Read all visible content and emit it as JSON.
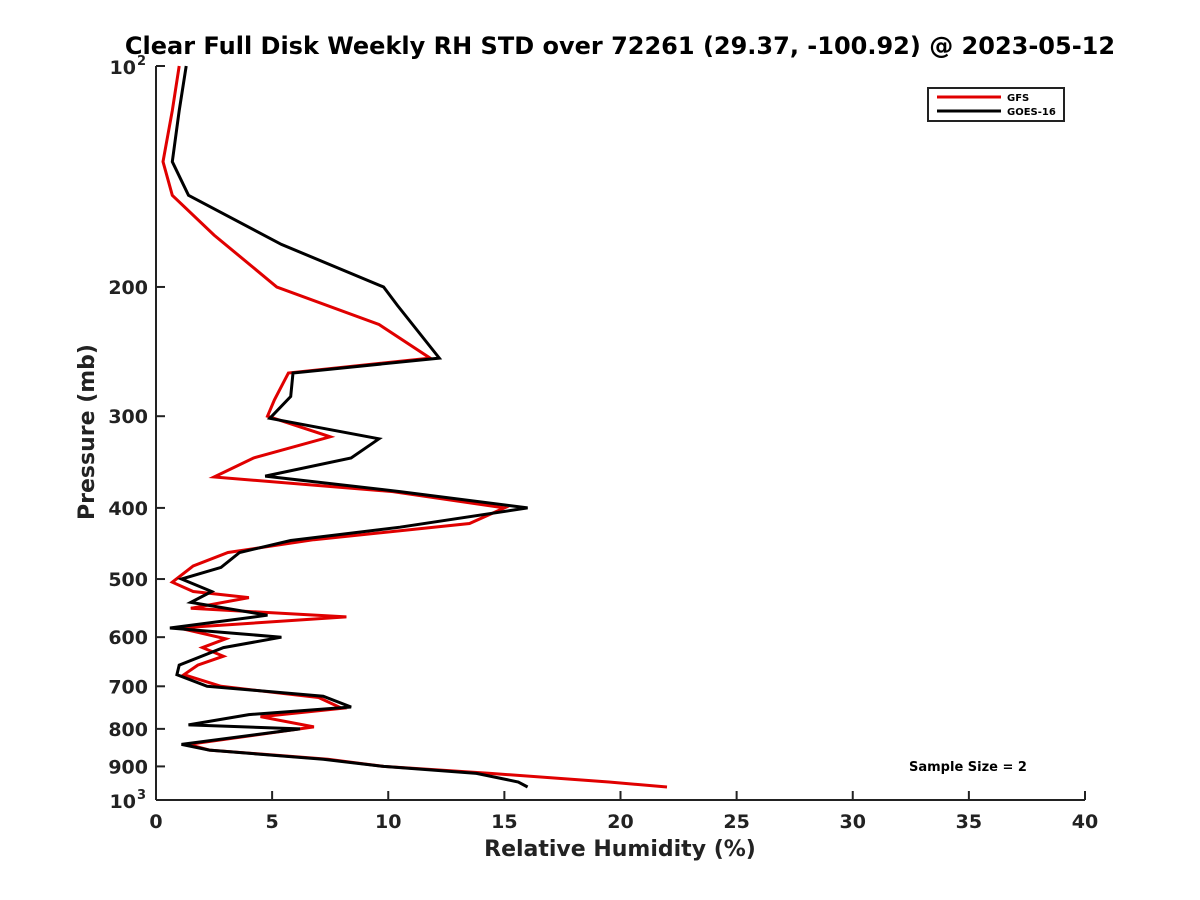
{
  "chart_data": {
    "type": "line",
    "title": "Clear Full Disk Weekly RH STD over 72261 (29.37, -100.92) @ 2023-05-12",
    "xlabel": "Relative Humidity (%)",
    "ylabel": "Pressure (mb)",
    "xlim": [
      0,
      40
    ],
    "ylim": [
      100,
      1000
    ],
    "y_scale": "log",
    "y_reversed": true,
    "x_ticks": [
      0,
      5,
      10,
      15,
      20,
      25,
      30,
      35,
      40
    ],
    "x_tick_labels": [
      "0",
      "5",
      "10",
      "15",
      "20",
      "25",
      "30",
      "35",
      "40"
    ],
    "y_ticks": [
      200,
      300,
      400,
      500,
      600,
      700,
      800,
      900
    ],
    "y_tick_labels": [
      "200",
      "300",
      "400",
      "500",
      "600",
      "700",
      "800",
      "900"
    ],
    "y_end_labels": {
      "top_base": "10",
      "top_exp": "2",
      "bottom_base": "10",
      "bottom_exp": "3"
    },
    "legend_position": "top-right",
    "annotation": "Sample Size = 2",
    "series": [
      {
        "name": "GFS",
        "color": "#e00000",
        "points": [
          [
            1.0,
            100
          ],
          [
            0.7,
            115
          ],
          [
            0.3,
            135
          ],
          [
            0.7,
            150
          ],
          [
            2.5,
            170
          ],
          [
            5.2,
            200
          ],
          [
            9.6,
            225
          ],
          [
            11.8,
            250
          ],
          [
            5.7,
            262
          ],
          [
            5.1,
            285
          ],
          [
            4.8,
            300
          ],
          [
            7.5,
            320
          ],
          [
            4.2,
            342
          ],
          [
            2.5,
            363
          ],
          [
            10.2,
            380
          ],
          [
            15.0,
            400
          ],
          [
            13.5,
            420
          ],
          [
            6.8,
            442
          ],
          [
            3.1,
            460
          ],
          [
            1.6,
            480
          ],
          [
            0.7,
            505
          ],
          [
            1.6,
            520
          ],
          [
            4.0,
            530
          ],
          [
            1.5,
            548
          ],
          [
            8.2,
            563
          ],
          [
            1.0,
            583
          ],
          [
            3.0,
            603
          ],
          [
            2.0,
            620
          ],
          [
            2.9,
            637
          ],
          [
            1.8,
            655
          ],
          [
            1.2,
            675
          ],
          [
            2.8,
            700
          ],
          [
            7.0,
            725
          ],
          [
            8.0,
            750
          ],
          [
            4.5,
            770
          ],
          [
            6.8,
            795
          ],
          [
            1.4,
            840
          ],
          [
            2.3,
            855
          ],
          [
            7.4,
            880
          ],
          [
            9.8,
            900
          ],
          [
            14.4,
            920
          ],
          [
            19.5,
            945
          ],
          [
            22.0,
            960
          ]
        ]
      },
      {
        "name": "GOES-16",
        "color": "#000000",
        "points": [
          [
            1.3,
            100
          ],
          [
            1.0,
            115
          ],
          [
            0.7,
            135
          ],
          [
            1.4,
            150
          ],
          [
            5.4,
            175
          ],
          [
            9.8,
            200
          ],
          [
            10.4,
            212
          ],
          [
            12.2,
            250
          ],
          [
            5.9,
            262
          ],
          [
            5.8,
            282
          ],
          [
            4.9,
            302
          ],
          [
            9.6,
            322
          ],
          [
            8.4,
            342
          ],
          [
            4.7,
            362
          ],
          [
            10.5,
            380
          ],
          [
            16.0,
            400
          ],
          [
            10.5,
            425
          ],
          [
            5.8,
            443
          ],
          [
            3.6,
            460
          ],
          [
            2.8,
            482
          ],
          [
            1.1,
            500
          ],
          [
            2.4,
            520
          ],
          [
            1.5,
            538
          ],
          [
            4.8,
            560
          ],
          [
            0.6,
            583
          ],
          [
            5.4,
            600
          ],
          [
            2.9,
            620
          ],
          [
            1.0,
            655
          ],
          [
            0.9,
            675
          ],
          [
            2.2,
            700
          ],
          [
            7.2,
            722
          ],
          [
            8.4,
            747
          ],
          [
            4.0,
            765
          ],
          [
            1.4,
            790
          ],
          [
            6.2,
            800
          ],
          [
            1.1,
            840
          ],
          [
            2.3,
            855
          ],
          [
            7.2,
            880
          ],
          [
            9.8,
            900
          ],
          [
            13.8,
            920
          ],
          [
            15.6,
            945
          ],
          [
            16.0,
            960
          ]
        ]
      }
    ]
  }
}
